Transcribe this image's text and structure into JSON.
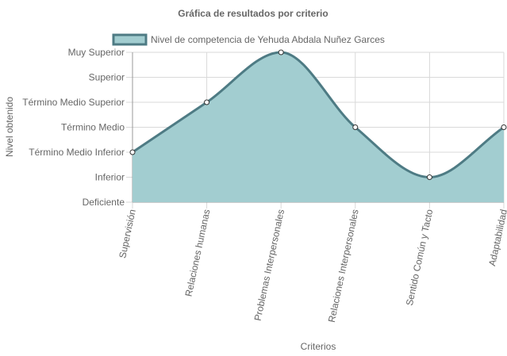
{
  "chart_data": {
    "type": "area",
    "title": "Gráfica de resultados por criterio",
    "xlabel": "Criterios",
    "ylabel": "Nivel obtenido",
    "categories": [
      "Supervisión",
      "Relaciones humanas",
      "Problemas Interpersonales",
      "Relaciones Interpersonales",
      "Sentido Común y Tacto",
      "Adaptabilidad"
    ],
    "y_levels": [
      "Deficiente",
      "Inferior",
      "Término Medio Inferior",
      "Término Medio",
      "Término Medio Superior",
      "Superior",
      "Muy Superior"
    ],
    "series": [
      {
        "name": "Nivel de competencia de Yehuda Abdala Nuñez Garces",
        "values": [
          "Término Medio Inferior",
          "Término Medio Superior",
          "Muy Superior",
          "Término Medio",
          "Inferior",
          "Término Medio"
        ]
      }
    ],
    "legend_position": "top",
    "grid": true,
    "colors": {
      "fill": "#a2cdd0",
      "line": "#4e7b84",
      "grid": "#d9d9d9",
      "axis": "#999999"
    }
  }
}
